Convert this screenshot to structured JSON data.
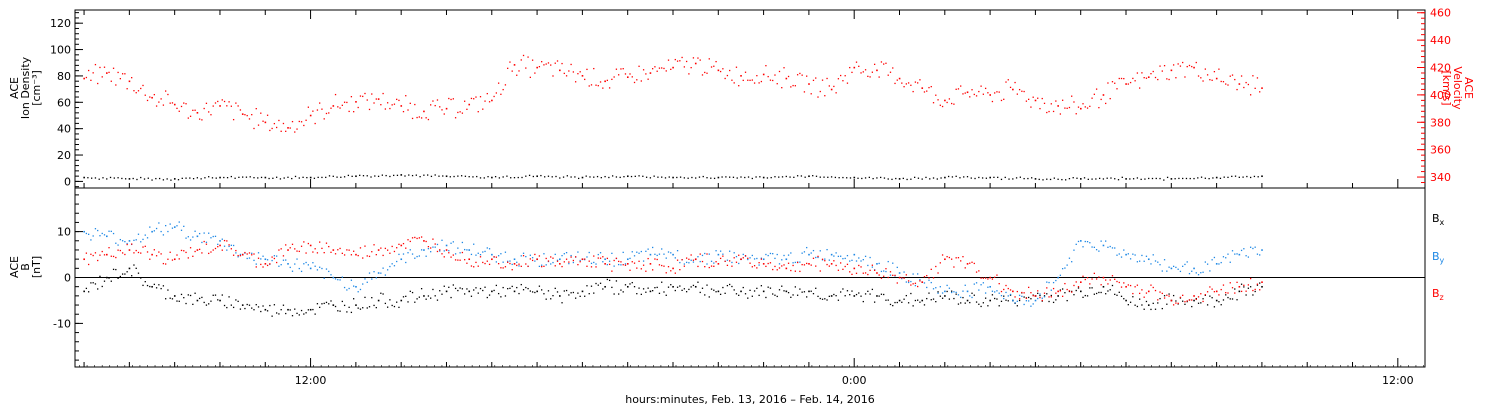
{
  "figure": {
    "xaxis_title": "hours:minutes, Feb. 13, 2016 – Feb. 14, 2016",
    "x_tick_labels": [
      "12:00",
      "0:00",
      "12:00"
    ]
  },
  "colors": {
    "black": "#000000",
    "red": "#ff0000",
    "blue": "#1e88e5"
  },
  "chart_data": [
    {
      "type": "scatter",
      "panel": "top",
      "x_unit": "hours from 00:00 Feb 13 2016",
      "xlim": [
        6.8,
        36.6
      ],
      "left_axis": {
        "label_lines": [
          "ACE",
          "Ion Density",
          "[cm⁻³]"
        ],
        "ylim": [
          -5,
          130
        ],
        "ticks": [
          0,
          20,
          40,
          60,
          80,
          100,
          120
        ],
        "color": "#000000"
      },
      "right_axis": {
        "label_lines": [
          "ACE",
          "Velocity",
          "[km/s]"
        ],
        "ylim": [
          332,
          462
        ],
        "ticks": [
          340,
          360,
          380,
          400,
          420,
          440,
          460
        ],
        "color": "#ff0000"
      },
      "series": [
        {
          "axis": "left",
          "color": "#000000",
          "x": [
            7.0,
            8.0,
            9.0,
            10.0,
            11.0,
            12.0,
            13.0,
            14.0,
            15.0,
            16.0,
            17.0,
            18.0,
            19.0,
            20.0,
            21.0,
            22.0,
            23.0,
            24.0,
            25.0,
            26.0,
            27.0,
            28.0,
            29.0,
            30.0,
            31.0,
            32.0,
            33.0
          ],
          "y": [
            3,
            2,
            2,
            3,
            3,
            3,
            4,
            5,
            4,
            3,
            4,
            3,
            4,
            3,
            3,
            3,
            4,
            3,
            2,
            3,
            3,
            2,
            2,
            2,
            2,
            3,
            4
          ]
        },
        {
          "axis": "right",
          "color": "#ff0000",
          "x": [
            7.0,
            7.5,
            8.0,
            8.5,
            9.0,
            9.5,
            10.0,
            10.5,
            11.0,
            11.5,
            12.0,
            12.5,
            13.0,
            13.5,
            14.0,
            14.5,
            15.0,
            15.5,
            16.0,
            16.5,
            17.0,
            17.5,
            18.0,
            18.5,
            19.0,
            19.5,
            20.0,
            20.5,
            21.0,
            21.5,
            22.0,
            22.5,
            23.0,
            23.5,
            24.0,
            24.5,
            25.0,
            25.5,
            26.0,
            26.5,
            27.0,
            27.5,
            28.0,
            28.5,
            29.0,
            29.5,
            30.0,
            30.5,
            31.0,
            31.5,
            32.0,
            32.5,
            33.0
          ],
          "y": [
            412,
            416,
            410,
            398,
            393,
            387,
            392,
            386,
            380,
            376,
            385,
            392,
            395,
            397,
            392,
            388,
            390,
            393,
            396,
            422,
            420,
            418,
            414,
            410,
            413,
            416,
            420,
            423,
            418,
            414,
            415,
            412,
            408,
            404,
            420,
            418,
            412,
            405,
            396,
            402,
            400,
            404,
            396,
            392,
            390,
            400,
            408,
            413,
            418,
            420,
            412,
            408,
            405
          ]
        }
      ]
    },
    {
      "type": "scatter",
      "panel": "bottom",
      "x_unit": "hours from 00:00 Feb 13 2016",
      "xlim": [
        6.8,
        36.6
      ],
      "left_axis": {
        "label_lines": [
          "ACE",
          "B",
          "[nT]"
        ],
        "ylim": [
          -19.5,
          19.5
        ],
        "ticks": [
          -10,
          0,
          10
        ],
        "color": "#000000"
      },
      "legend": [
        {
          "label": "Bx",
          "base": "B",
          "sub": "x",
          "color": "#000000"
        },
        {
          "label": "By",
          "base": "B",
          "sub": "y",
          "color": "#1e88e5"
        },
        {
          "label": "Bz",
          "base": "B",
          "sub": "z",
          "color": "#ff0000"
        }
      ],
      "series": [
        {
          "name": "Bx",
          "color": "#000000",
          "x": [
            7.0,
            7.5,
            8.0,
            8.5,
            9.0,
            9.5,
            10.0,
            10.5,
            11.0,
            11.5,
            12.0,
            12.5,
            13.0,
            13.5,
            14.0,
            14.5,
            15.0,
            15.5,
            16.0,
            16.5,
            17.0,
            17.5,
            18.0,
            18.5,
            19.0,
            19.5,
            20.0,
            20.5,
            21.0,
            21.5,
            22.0,
            22.5,
            23.0,
            23.5,
            24.0,
            24.5,
            25.0,
            25.5,
            26.0,
            26.5,
            27.0,
            27.5,
            28.0,
            28.5,
            29.0,
            29.5,
            30.0,
            30.5,
            31.0,
            31.5,
            32.0,
            32.5,
            33.0
          ],
          "y": [
            -3,
            0,
            2,
            -2,
            -4,
            -5,
            -5,
            -6,
            -7,
            -7,
            -7,
            -6,
            -6,
            -5,
            -5,
            -4,
            -3,
            -3,
            -3,
            -3,
            -3,
            -4,
            -3,
            -2,
            -2,
            -3,
            -2,
            -2,
            -3,
            -3,
            -3,
            -3,
            -3,
            -4,
            -4,
            -4,
            -5,
            -5,
            -4,
            -5,
            -5,
            -5,
            -4,
            -4,
            -3,
            -2,
            -5,
            -6,
            -5,
            -5,
            -5,
            -3,
            -2
          ]
        },
        {
          "name": "By",
          "color": "#1e88e5",
          "x": [
            7.0,
            7.5,
            8.0,
            8.5,
            9.0,
            9.5,
            10.0,
            10.5,
            11.0,
            11.5,
            12.0,
            12.5,
            13.0,
            13.5,
            14.0,
            14.5,
            15.0,
            15.5,
            16.0,
            16.5,
            17.0,
            17.5,
            18.0,
            18.5,
            19.0,
            19.5,
            20.0,
            20.5,
            21.0,
            21.5,
            22.0,
            22.5,
            23.0,
            23.5,
            24.0,
            24.5,
            25.0,
            25.5,
            26.0,
            26.5,
            27.0,
            27.5,
            28.0,
            28.5,
            29.0,
            29.5,
            30.0,
            30.5,
            31.0,
            31.5,
            32.0,
            32.5,
            33.0
          ],
          "y": [
            10,
            9,
            8,
            10,
            11,
            9,
            8,
            5,
            4,
            3,
            2,
            0,
            -2,
            1,
            4,
            6,
            7,
            6,
            5,
            4,
            4,
            4,
            4,
            4,
            4,
            5,
            5,
            4,
            5,
            4,
            4,
            4,
            5,
            5,
            5,
            3,
            1,
            -1,
            -3,
            -3,
            -2,
            -5,
            -5,
            0,
            8,
            7,
            5,
            4,
            2,
            2,
            3,
            5,
            6
          ]
        },
        {
          "name": "Bz",
          "color": "#ff0000",
          "x": [
            7.0,
            7.5,
            8.0,
            8.5,
            9.0,
            9.5,
            10.0,
            10.5,
            11.0,
            11.5,
            12.0,
            12.5,
            13.0,
            13.5,
            14.0,
            14.5,
            15.0,
            15.5,
            16.0,
            16.5,
            17.0,
            17.5,
            18.0,
            18.5,
            19.0,
            19.5,
            20.0,
            20.5,
            21.0,
            21.5,
            22.0,
            22.5,
            23.0,
            23.5,
            24.0,
            24.5,
            25.0,
            25.5,
            26.0,
            26.5,
            27.0,
            27.5,
            28.0,
            28.5,
            29.0,
            29.5,
            30.0,
            30.5,
            31.0,
            31.5,
            32.0,
            32.5,
            33.0
          ],
          "y": [
            4,
            5,
            6,
            5,
            4,
            6,
            7,
            5,
            3,
            6,
            7,
            6,
            5,
            6,
            7,
            8,
            6,
            4,
            4,
            3,
            4,
            3,
            4,
            3,
            3,
            3,
            2,
            4,
            3,
            4,
            3,
            2,
            3,
            3,
            2,
            1,
            0,
            -1,
            4,
            3,
            0,
            -3,
            -4,
            -3,
            -1,
            0,
            -2,
            -3,
            -5,
            -4,
            -3,
            -2,
            -1
          ]
        }
      ]
    }
  ]
}
